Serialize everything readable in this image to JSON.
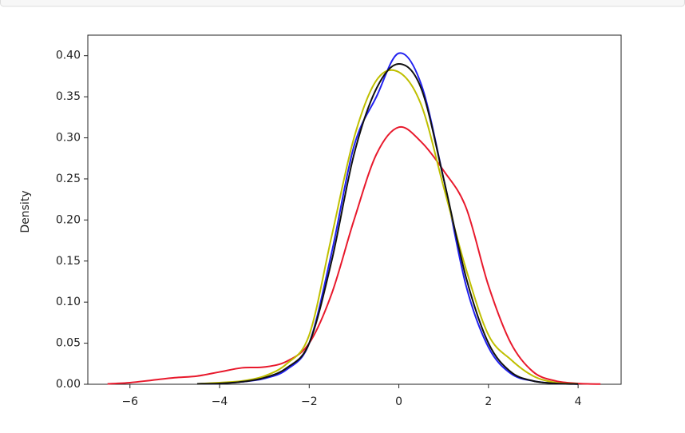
{
  "chart_data": {
    "type": "line",
    "ylabel": "Density",
    "x": [
      -6.5,
      -6.0,
      -5.5,
      -5.0,
      -4.5,
      -4.0,
      -3.5,
      -3.0,
      -2.5,
      -2.0,
      -1.5,
      -1.0,
      -0.5,
      0.0,
      0.5,
      1.0,
      1.5,
      2.0,
      2.5,
      3.0,
      3.5,
      4.0,
      4.5
    ],
    "series": [
      {
        "color": "#e8192c",
        "values": [
          0.0005,
          0.002,
          0.005,
          0.008,
          0.01,
          0.015,
          0.02,
          0.021,
          0.028,
          0.05,
          0.11,
          0.2,
          0.28,
          0.313,
          0.295,
          0.26,
          0.215,
          0.12,
          0.05,
          0.015,
          0.004,
          0.001,
          0.0002
        ]
      },
      {
        "color": "#2020f0",
        "values": [
          null,
          null,
          null,
          null,
          0.0005,
          0.001,
          0.003,
          0.007,
          0.018,
          0.05,
          0.16,
          0.29,
          0.35,
          0.403,
          0.365,
          0.25,
          0.12,
          0.045,
          0.013,
          0.004,
          0.001,
          0.0003,
          null
        ]
      },
      {
        "color": "#bfbf00",
        "values": [
          null,
          null,
          null,
          null,
          0.0005,
          0.002,
          0.004,
          0.01,
          0.025,
          0.06,
          0.18,
          0.3,
          0.37,
          0.38,
          0.34,
          0.24,
          0.14,
          0.06,
          0.03,
          0.01,
          0.002,
          0.0005,
          null
        ]
      },
      {
        "color": "#111111",
        "values": [
          null,
          null,
          null,
          null,
          0.0005,
          0.001,
          0.003,
          0.008,
          0.02,
          0.05,
          0.15,
          0.28,
          0.36,
          0.39,
          0.36,
          0.25,
          0.13,
          0.05,
          0.015,
          0.004,
          0.001,
          0.0003,
          null
        ]
      }
    ],
    "xlim": [
      -6.94,
      4.96
    ],
    "ylim": [
      0,
      0.425
    ],
    "xticks": [
      {
        "value": -6,
        "label": "−6"
      },
      {
        "value": -4,
        "label": "−4"
      },
      {
        "value": -2,
        "label": "−2"
      },
      0,
      2,
      4
    ],
    "yticks": [
      {
        "value": 0,
        "label": "0.00"
      },
      {
        "value": 0.05,
        "label": "0.05"
      },
      {
        "value": 0.1,
        "label": "0.10"
      },
      {
        "value": 0.15,
        "label": "0.15"
      },
      {
        "value": 0.2,
        "label": "0.20"
      },
      {
        "value": 0.25,
        "label": "0.25"
      },
      {
        "value": 0.3,
        "label": "0.30"
      },
      {
        "value": 0.35,
        "label": "0.35"
      },
      {
        "value": 0.4,
        "label": "0.40"
      }
    ],
    "grid": false
  }
}
